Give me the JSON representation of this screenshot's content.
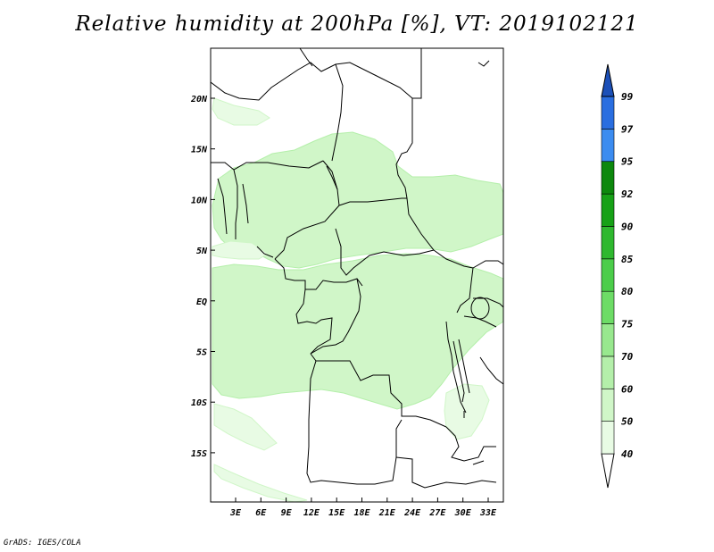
{
  "title": "Relative humidity at 200hPa [%], VT: 2019102121",
  "credit": "GrADS: IGES/COLA",
  "map": {
    "lat_labels": [
      "20N",
      "15N",
      "10N",
      "5N",
      "EQ",
      "5S",
      "10S",
      "15S"
    ],
    "lon_labels": [
      "3E",
      "6E",
      "9E",
      "12E",
      "15E",
      "18E",
      "21E",
      "24E",
      "27E",
      "30E",
      "33E"
    ]
  },
  "colorbar": {
    "levels": [
      "40",
      "50",
      "60",
      "70",
      "75",
      "80",
      "85",
      "90",
      "92",
      "95",
      "97",
      "99"
    ],
    "colors": [
      "#ffffff",
      "#e8fbe4",
      "#d0f6c8",
      "#b4efaa",
      "#98e88e",
      "#6ddc66",
      "#4ccd4a",
      "#2fb82f",
      "#17a117",
      "#0d880d",
      "#3c8cf0",
      "#2a6ee0",
      "#1c50b8"
    ]
  },
  "chart_data": {
    "type": "heatmap",
    "title": "Relative humidity at 200hPa [%], VT: 2019102121",
    "variable": "Relative humidity",
    "units": "%",
    "level": "200hPa",
    "valid_time": "2019102121",
    "y_ticks": [
      "20N",
      "15N",
      "10N",
      "5N",
      "EQ",
      "5S",
      "10S",
      "15S"
    ],
    "x_ticks": [
      "3E",
      "6E",
      "9E",
      "12E",
      "15E",
      "18E",
      "21E",
      "24E",
      "27E",
      "30E",
      "33E"
    ],
    "color_levels": [
      40,
      50,
      60,
      70,
      75,
      80,
      85,
      90,
      92,
      95,
      97,
      99
    ]
  }
}
